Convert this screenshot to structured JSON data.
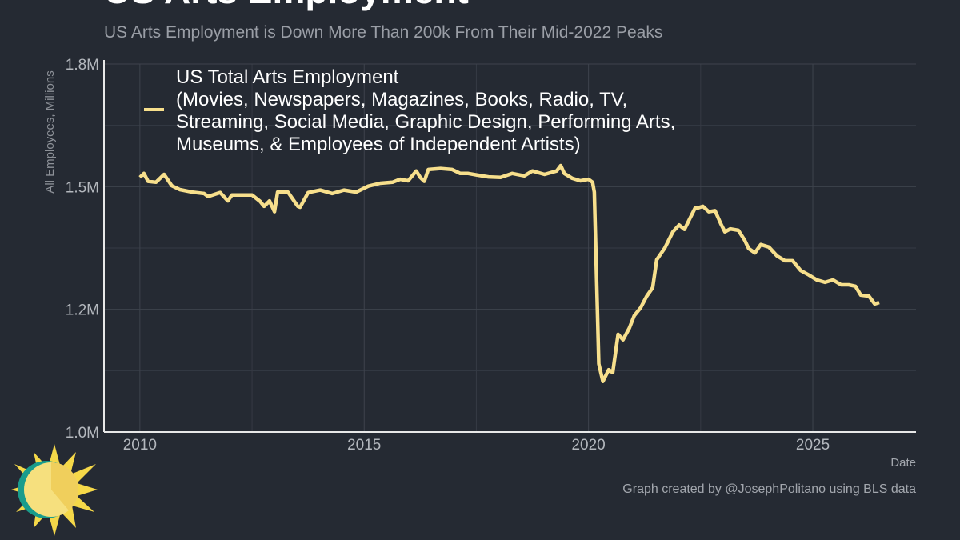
{
  "chart_data": {
    "type": "line",
    "title": "US Arts Employment",
    "subtitle": "US Arts Employment is Down More Than 200k From Their Mid-2022 Peaks",
    "y_label": "All Employees, Millions",
    "x_label": "Date",
    "credit": "Graph created by @JosephPolitano using BLS data",
    "xlim": [
      2009.2,
      2027.3
    ],
    "xticks": [
      2010,
      2015,
      2020,
      2025
    ],
    "minor_xticks": [
      2012.5,
      2017.5,
      2022.5
    ],
    "ylim": [
      1.0,
      1.75
    ],
    "yticks": [
      {
        "value": 1.0,
        "label": "1.0M"
      },
      {
        "value": 1.25,
        "label": "1.2M"
      },
      {
        "value": 1.5,
        "label": "1.5M"
      },
      {
        "value": 1.75,
        "label": "1.8M"
      }
    ],
    "minor_yticks": [
      1.125,
      1.375,
      1.625
    ],
    "grid": true,
    "legend": "top-left",
    "x": [
      2010.0,
      2010.09,
      2010.18,
      2010.36,
      2010.54,
      2010.71,
      2010.89,
      2011.16,
      2011.43,
      2011.52,
      2011.79,
      2011.96,
      2012.05,
      2012.32,
      2012.5,
      2012.68,
      2012.77,
      2012.89,
      2013.0,
      2013.07,
      2013.3,
      2013.52,
      2013.57,
      2013.75,
      2014.02,
      2014.29,
      2014.55,
      2014.82,
      2015.09,
      2015.36,
      2015.63,
      2015.8,
      2015.98,
      2016.16,
      2016.25,
      2016.34,
      2016.43,
      2016.7,
      2016.96,
      2017.14,
      2017.32,
      2017.5,
      2017.77,
      2018.04,
      2018.3,
      2018.57,
      2018.75,
      2019.02,
      2019.29,
      2019.38,
      2019.46,
      2019.64,
      2019.82,
      2020.0,
      2020.09,
      2020.13,
      2020.23,
      2020.32,
      2020.45,
      2020.54,
      2020.66,
      2020.77,
      2020.91,
      2021.02,
      2021.16,
      2021.3,
      2021.43,
      2021.52,
      2021.7,
      2021.88,
      2022.02,
      2022.14,
      2022.27,
      2022.38,
      2022.45,
      2022.55,
      2022.68,
      2022.82,
      2022.95,
      2023.04,
      2023.16,
      2023.34,
      2023.48,
      2023.57,
      2023.71,
      2023.84,
      2024.02,
      2024.2,
      2024.38,
      2024.55,
      2024.73,
      2024.91,
      2025.09,
      2025.27,
      2025.45,
      2025.63,
      2025.8,
      2025.95,
      2026.07,
      2026.25,
      2026.38,
      2026.48
    ],
    "series": [
      {
        "name": "US Total Arts Employment\n(Movies, Newspapers, Magazines, Books, Radio, TV,\nStreaming, Social Media, Graphic Design, Performing Arts,\nMuseums, & Employees of Independent Artists)",
        "color": "#f7df8c",
        "values": [
          1.519,
          1.527,
          1.511,
          1.509,
          1.525,
          1.502,
          1.494,
          1.489,
          1.486,
          1.48,
          1.488,
          1.471,
          1.483,
          1.483,
          1.483,
          1.47,
          1.46,
          1.471,
          1.449,
          1.489,
          1.489,
          1.46,
          1.458,
          1.488,
          1.493,
          1.486,
          1.493,
          1.489,
          1.501,
          1.507,
          1.509,
          1.515,
          1.512,
          1.532,
          1.519,
          1.511,
          1.535,
          1.537,
          1.535,
          1.527,
          1.527,
          1.524,
          1.52,
          1.519,
          1.527,
          1.522,
          1.532,
          1.525,
          1.532,
          1.543,
          1.527,
          1.517,
          1.512,
          1.515,
          1.509,
          1.489,
          1.139,
          1.103,
          1.127,
          1.121,
          1.199,
          1.188,
          1.212,
          1.237,
          1.253,
          1.277,
          1.294,
          1.351,
          1.375,
          1.408,
          1.422,
          1.413,
          1.437,
          1.457,
          1.457,
          1.46,
          1.449,
          1.451,
          1.424,
          1.408,
          1.414,
          1.411,
          1.391,
          1.374,
          1.365,
          1.382,
          1.377,
          1.359,
          1.349,
          1.349,
          1.329,
          1.32,
          1.31,
          1.305,
          1.31,
          1.3,
          1.3,
          1.297,
          1.279,
          1.277,
          1.261,
          1.264
        ]
      }
    ]
  }
}
